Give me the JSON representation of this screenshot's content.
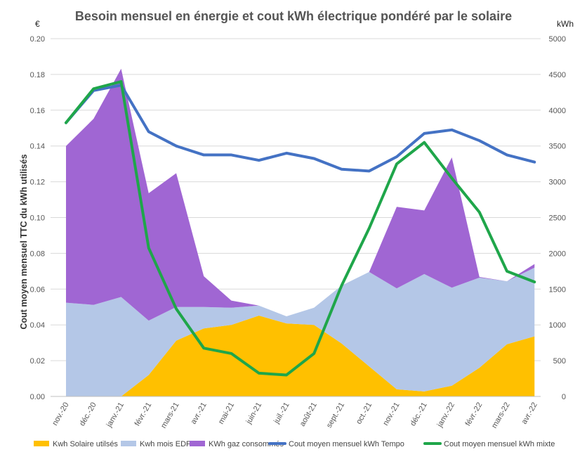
{
  "chart_data": {
    "type": "area",
    "title": "Besoin mensuel en énergie et cout kWh électrique pondéré par le solaire",
    "y_left_unit": "€",
    "y_right_unit": "kWh",
    "ylabel": "Cout moyen mensuel TTC du kWh utilisés",
    "y_left_lim": [
      0,
      0.2
    ],
    "y_left_ticks": [
      "0.00",
      "0.02",
      "0.04",
      "0.06",
      "0.08",
      "0.10",
      "0.12",
      "0.14",
      "0.16",
      "0.18",
      "0.20"
    ],
    "y_right_lim": [
      0,
      5000
    ],
    "y_right_ticks": [
      "0",
      "500",
      "1000",
      "1500",
      "2000",
      "2500",
      "3000",
      "3500",
      "4000",
      "4500",
      "5000"
    ],
    "categories": [
      "nov.-20",
      "déc.-20",
      "janv.-21",
      "févr.-21",
      "mars-21",
      "avr.-21",
      "mai-21",
      "juin-21",
      "juil.-21",
      "août-21",
      "sept.-21",
      "oct.-21",
      "nov.-21",
      "déc.-21",
      "janv.-22",
      "févr.-22",
      "mars-22",
      "avr.-22"
    ],
    "grid": true,
    "legend_position": "bottom",
    "series": [
      {
        "name": "Kwh Solaire utilsés",
        "type": "area",
        "axis": "right",
        "color": "#FFC000",
        "values": [
          0,
          0,
          0,
          300,
          780,
          950,
          1000,
          1130,
          1020,
          1000,
          740,
          420,
          100,
          70,
          150,
          400,
          730,
          840
        ]
      },
      {
        "name": "Kwh mois EDF",
        "type": "area",
        "axis": "right",
        "color": "#B4C7E7",
        "values": [
          1310,
          1280,
          1390,
          760,
          470,
          300,
          240,
          140,
          100,
          240,
          810,
          1320,
          1410,
          1640,
          1370,
          1260,
          880,
          960
        ]
      },
      {
        "name": "KWh gaz consommés",
        "type": "area",
        "axis": "right",
        "color": "#A066D3",
        "values": [
          2190,
          2600,
          3190,
          1780,
          1870,
          430,
          100,
          0,
          0,
          0,
          0,
          0,
          1140,
          890,
          1820,
          10,
          0,
          50
        ]
      },
      {
        "name": "Cout moyen mensuel kWh Tempo",
        "type": "line",
        "axis": "left",
        "color": "#4472C4",
        "values": [
          0.153,
          0.171,
          0.174,
          0.148,
          0.14,
          0.135,
          0.135,
          0.132,
          0.136,
          0.133,
          0.127,
          0.126,
          0.134,
          0.147,
          0.149,
          0.143,
          0.135,
          0.131
        ]
      },
      {
        "name": "Cout moyen mensuel kWh mixte",
        "type": "line",
        "axis": "left",
        "color": "#1FA64A",
        "values": [
          0.153,
          0.172,
          0.176,
          0.083,
          0.049,
          0.027,
          0.024,
          0.013,
          0.012,
          0.024,
          0.062,
          0.094,
          0.13,
          0.142,
          0.122,
          0.103,
          0.07,
          0.064
        ]
      }
    ]
  }
}
